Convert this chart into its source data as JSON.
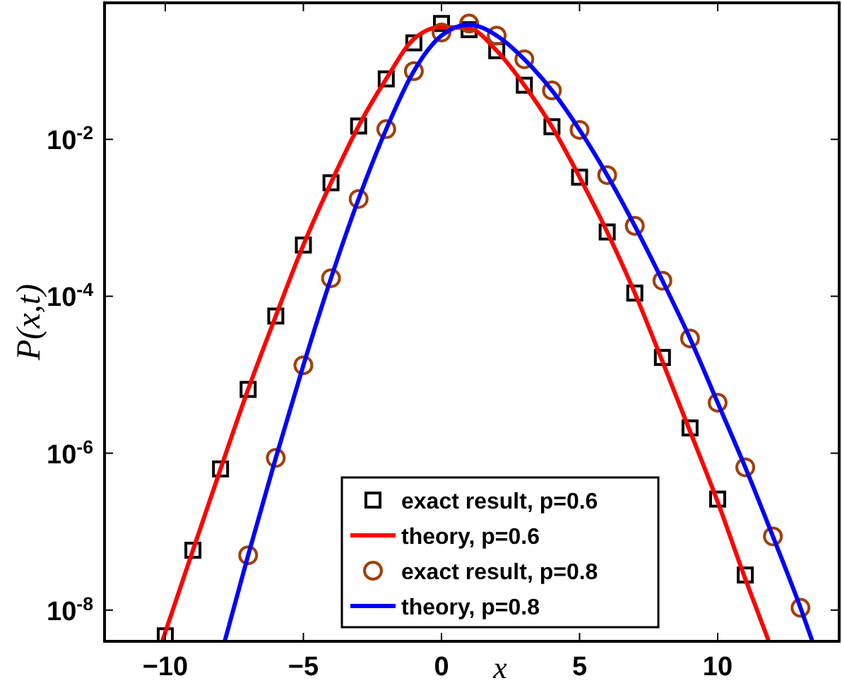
{
  "chart_data": {
    "type": "line",
    "xlabel": "x",
    "ylabel": "P(x,t)",
    "log": "y",
    "xlim": [
      -12.2,
      14.4
    ],
    "ylim": [
      4e-09,
      0.55
    ],
    "xticks": [
      -10,
      -5,
      0,
      5,
      10
    ],
    "yticks": [
      {
        "value": 1e-08,
        "label": "10$^{-8}$"
      },
      {
        "value": 1e-06,
        "label": "10$^{-6}$"
      },
      {
        "value": 0.0001,
        "label": "10$^{-4}$"
      },
      {
        "value": 0.01,
        "label": "10$^{-2}$"
      }
    ],
    "legend": "bottom",
    "grid": false,
    "series": [
      {
        "name": "exact result, p=0.6",
        "type": "scatter",
        "marker": "square",
        "color": "#000000",
        "x": [
          -10,
          -9,
          -8,
          -7,
          -6,
          -5,
          -4,
          -3,
          -2,
          -1,
          0,
          1,
          2,
          3,
          4,
          5,
          6,
          7,
          8,
          9,
          10,
          11
        ],
        "values": [
          4.7e-09,
          5.8e-08,
          6.3e-07,
          6.5e-06,
          5.6e-05,
          0.00045,
          0.0028,
          0.0148,
          0.059,
          0.17,
          0.3,
          0.25,
          0.135,
          0.049,
          0.0145,
          0.0033,
          0.00066,
          0.00011,
          1.66e-05,
          2.1e-06,
          2.6e-07,
          2.8e-08
        ]
      },
      {
        "name": "theory, p=0.6",
        "marker": "none",
        "line_style": "solid",
        "color": "#ff0000",
        "x": [
          -10.1,
          -9,
          -8,
          -7,
          -6,
          -5,
          -4,
          -3,
          -2,
          -1,
          0,
          1,
          2,
          3,
          4,
          5,
          6,
          7,
          8,
          9,
          10,
          11,
          11.84
        ],
        "values": [
          4.1e-09,
          5.8e-08,
          6.3e-07,
          6.5e-06,
          5.6e-05,
          0.00045,
          0.0028,
          0.0148,
          0.059,
          0.19,
          0.27,
          0.26,
          0.135,
          0.049,
          0.0145,
          0.0033,
          0.00066,
          0.00011,
          1.48e-05,
          1.9e-06,
          2.4e-07,
          2.5e-08,
          4.1e-09
        ]
      },
      {
        "name": "exact result, p=0.8",
        "type": "scatter",
        "marker": "circle",
        "color": "#a0400a",
        "x": [
          -7,
          -6,
          -5,
          -4,
          -3,
          -2,
          -1,
          0,
          1,
          2,
          3,
          4,
          5,
          6,
          7,
          8,
          9,
          10,
          11,
          12,
          13
        ],
        "values": [
          5e-08,
          8.7e-07,
          1.32e-05,
          0.00017,
          0.00174,
          0.0135,
          0.074,
          0.23,
          0.3,
          0.21,
          0.105,
          0.042,
          0.0132,
          0.0035,
          0.00079,
          0.000158,
          2.9e-05,
          4.4e-06,
          6.6e-07,
          8.7e-08,
          1.07e-08
        ]
      },
      {
        "name": "theory, p=0.8",
        "marker": "none",
        "line_style": "solid",
        "color": "#0000ff",
        "x": [
          -7.84,
          -7,
          -6,
          -5,
          -4,
          -3,
          -2,
          -1,
          0,
          1,
          2,
          3,
          4,
          5,
          6,
          7,
          8,
          9,
          10,
          11,
          12,
          13,
          13.42
        ],
        "values": [
          4.1e-09,
          5e-08,
          8.7e-07,
          1.32e-05,
          0.00017,
          0.00174,
          0.0135,
          0.074,
          0.21,
          0.29,
          0.21,
          0.105,
          0.042,
          0.0132,
          0.0035,
          0.00079,
          0.000158,
          2.9e-05,
          4.4e-06,
          6.6e-07,
          8.7e-08,
          1.07e-08,
          4.1e-09
        ]
      }
    ]
  }
}
